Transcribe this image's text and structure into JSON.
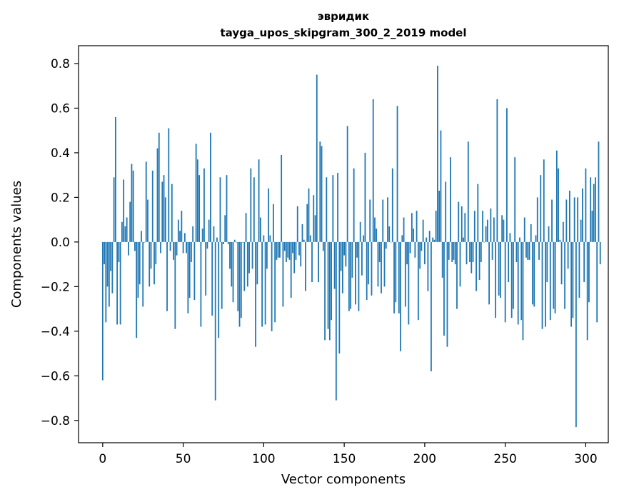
{
  "chart_data": {
    "type": "bar",
    "title": "эвридик",
    "subtitle": "tayga_upos_skipgram_300_2_2019 model",
    "xlabel": "Vector components",
    "ylabel": "Components values",
    "xlim": [
      -15,
      314
    ],
    "ylim": [
      -0.9,
      0.88
    ],
    "xticks": [
      0,
      50,
      100,
      150,
      200,
      250,
      300
    ],
    "xtick_labels": [
      "0",
      "50",
      "100",
      "150",
      "200",
      "250",
      "300"
    ],
    "yticks": [
      0.8,
      0.6,
      0.4,
      0.2,
      0.0,
      -0.2,
      -0.4,
      -0.6,
      -0.8
    ],
    "ytick_labels": [
      "0.8",
      "0.6",
      "0.4",
      "0.2",
      "0.0",
      "−0.2",
      "−0.4",
      "−0.6",
      "−0.8"
    ],
    "grid": false,
    "color": "#1f77b4",
    "values": [
      -0.62,
      -0.1,
      -0.36,
      -0.2,
      -0.29,
      -0.13,
      -0.23,
      0.29,
      0.56,
      -0.37,
      -0.09,
      -0.37,
      0.09,
      0.28,
      0.07,
      0.11,
      -0.06,
      0.18,
      0.35,
      0.32,
      -0.04,
      -0.43,
      -0.25,
      -0.19,
      0.05,
      -0.29,
      0.0,
      0.36,
      0.19,
      -0.2,
      -0.12,
      0.32,
      -0.19,
      -0.1,
      0.42,
      0.49,
      -0.05,
      0.27,
      0.3,
      0.2,
      -0.31,
      0.51,
      -0.04,
      0.26,
      -0.08,
      -0.39,
      -0.06,
      0.1,
      0.05,
      0.14,
      -0.05,
      0.04,
      -0.05,
      -0.32,
      -0.25,
      -0.09,
      0.07,
      -0.26,
      0.44,
      0.37,
      0.3,
      -0.38,
      0.06,
      0.33,
      -0.24,
      -0.03,
      0.1,
      0.49,
      -0.33,
      0.07,
      -0.71,
      0.02,
      -0.43,
      0.29,
      -0.3,
      -0.01,
      0.12,
      0.3,
      -0.01,
      -0.12,
      -0.2,
      -0.27,
      0.01,
      0.0,
      -0.31,
      -0.38,
      -0.34,
      0.0,
      -0.22,
      0.13,
      -0.2,
      -0.14,
      0.33,
      -0.12,
      0.29,
      -0.47,
      -0.19,
      0.37,
      0.11,
      -0.38,
      0.03,
      -0.37,
      -0.12,
      0.24,
      0.03,
      -0.4,
      0.17,
      -0.36,
      -0.08,
      -0.07,
      -0.07,
      0.39,
      -0.29,
      -0.04,
      -0.09,
      -0.07,
      -0.08,
      -0.25,
      -0.05,
      -0.14,
      -0.08,
      0.16,
      -0.06,
      -0.11,
      0.08,
      0.01,
      -0.22,
      0.17,
      0.24,
      0.03,
      -0.18,
      0.21,
      0.12,
      0.75,
      -0.18,
      0.45,
      0.43,
      -0.04,
      -0.44,
      0.29,
      -0.39,
      -0.44,
      -0.35,
      0.3,
      -0.21,
      -0.71,
      0.31,
      -0.5,
      -0.13,
      -0.23,
      -0.06,
      -0.11,
      0.52,
      -0.31,
      -0.3,
      -0.16,
      0.33,
      -0.28,
      -0.07,
      -0.31,
      0.09,
      -0.15,
      0.03,
      0.4,
      -0.26,
      -0.19,
      0.19,
      -0.24,
      0.64,
      0.11,
      0.06,
      -0.2,
      -0.09,
      -0.23,
      0.19,
      -0.2,
      -0.03,
      0.2,
      0.07,
      0.0,
      0.33,
      -0.32,
      -0.27,
      0.61,
      -0.32,
      -0.49,
      0.03,
      0.11,
      -0.29,
      -0.1,
      -0.37,
      -0.05,
      0.13,
      0.06,
      -0.07,
      0.14,
      -0.35,
      -0.12,
      -0.04,
      0.1,
      -0.1,
      0.02,
      -0.22,
      0.05,
      -0.58,
      0.02,
      0.01,
      0.14,
      0.79,
      0.23,
      0.5,
      -0.16,
      -0.42,
      0.27,
      -0.47,
      -0.08,
      0.38,
      -0.09,
      -0.08,
      -0.1,
      -0.3,
      0.18,
      -0.2,
      0.16,
      0.02,
      0.13,
      -0.1,
      0.45,
      -0.09,
      -0.14,
      -0.09,
      0.14,
      -0.22,
      0.26,
      -0.17,
      -0.09,
      0.14,
      0.0,
      0.07,
      0.1,
      -0.28,
      0.15,
      -0.08,
      0.11,
      -0.34,
      0.64,
      -0.24,
      -0.25,
      0.12,
      0.1,
      -0.36,
      0.6,
      -0.18,
      0.04,
      -0.34,
      -0.3,
      0.38,
      -0.09,
      -0.37,
      0.02,
      -0.35,
      -0.44,
      0.11,
      -0.07,
      -0.08,
      -0.08,
      0.08,
      -0.28,
      -0.29,
      0.03,
      0.2,
      -0.08,
      0.3,
      -0.39,
      0.37,
      -0.38,
      -0.18,
      0.07,
      -0.35,
      0.19,
      -0.3,
      -0.32,
      0.41,
      0.33,
      0.01,
      -0.19,
      0.09,
      -0.3,
      0.19,
      -0.12,
      0.23,
      -0.38,
      -0.34,
      0.2,
      -0.83,
      0.2,
      -0.25,
      0.1,
      0.24,
      -0.18,
      0.33,
      -0.44,
      -0.27,
      0.29,
      0.14,
      0.26,
      0.29,
      -0.36,
      0.45,
      -0.1
    ]
  }
}
